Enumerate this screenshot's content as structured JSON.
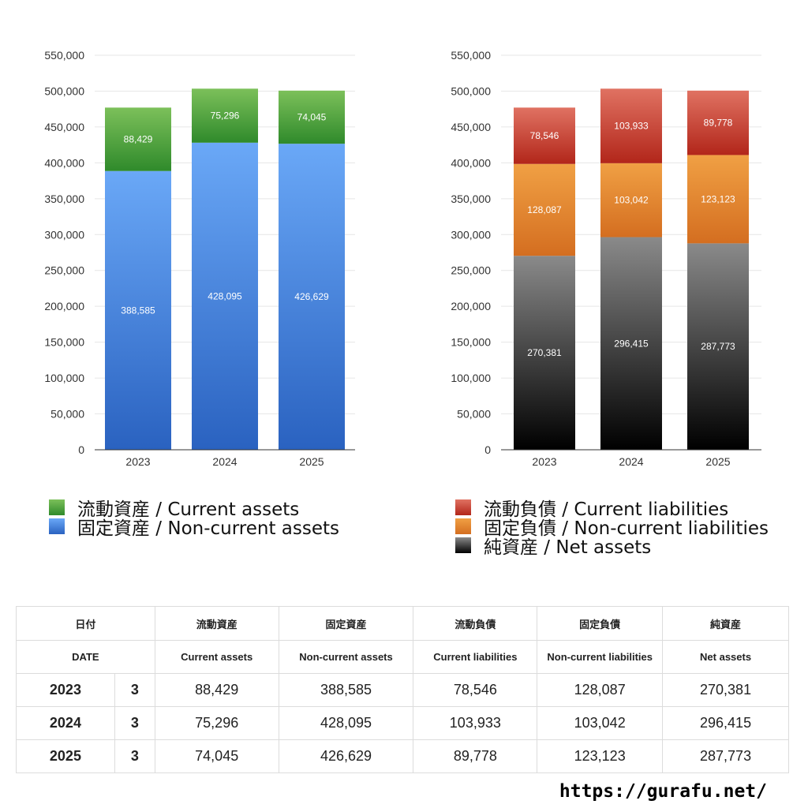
{
  "colors": {
    "current_assets": [
      "#7cc05a",
      "#2f8a2b"
    ],
    "noncurrent_assets": [
      "#6aa8f7",
      "#2a62c0"
    ],
    "current_liabilities": [
      "#e07262",
      "#b2261a"
    ],
    "noncurrent_liabilities": [
      "#f0a044",
      "#d46e20"
    ],
    "net_assets": [
      "#8a8a8a",
      "#000000"
    ]
  },
  "chart_data": [
    {
      "type": "bar",
      "stacked": true,
      "categories": [
        "2023",
        "2024",
        "2025"
      ],
      "ylim": [
        0,
        550000
      ],
      "yticks": [
        0,
        50000,
        100000,
        150000,
        200000,
        250000,
        300000,
        350000,
        400000,
        450000,
        500000,
        550000
      ],
      "ytick_labels": [
        "0",
        "50,000",
        "100,000",
        "150,000",
        "200,000",
        "250,000",
        "300,000",
        "350,000",
        "400,000",
        "450,000",
        "500,000",
        "550,000"
      ],
      "series": [
        {
          "name": "固定資産 / Non-current assets",
          "key": "noncurrent_assets",
          "values": [
            388585,
            428095,
            426629
          ],
          "labels": [
            "388,585",
            "428,095",
            "426,629"
          ]
        },
        {
          "name": "流動資産 / Current assets",
          "key": "current_assets",
          "values": [
            88429,
            75296,
            74045
          ],
          "labels": [
            "88,429",
            "75,296",
            "74,045"
          ]
        }
      ],
      "legend": [
        "流動資産 / Current assets",
        "固定資産 / Non-current assets"
      ],
      "legend_keys": [
        "current_assets",
        "noncurrent_assets"
      ],
      "legend_placement": "bottom"
    },
    {
      "type": "bar",
      "stacked": true,
      "categories": [
        "2023",
        "2024",
        "2025"
      ],
      "ylim": [
        0,
        550000
      ],
      "yticks": [
        0,
        50000,
        100000,
        150000,
        200000,
        250000,
        300000,
        350000,
        400000,
        450000,
        500000,
        550000
      ],
      "ytick_labels": [
        "0",
        "50,000",
        "100,000",
        "150,000",
        "200,000",
        "250,000",
        "300,000",
        "350,000",
        "400,000",
        "450,000",
        "500,000",
        "550,000"
      ],
      "series": [
        {
          "name": "純資産 / Net assets",
          "key": "net_assets",
          "values": [
            270381,
            296415,
            287773
          ],
          "labels": [
            "270,381",
            "296,415",
            "287,773"
          ]
        },
        {
          "name": "固定負債 / Non-current liabilities",
          "key": "noncurrent_liabilities",
          "values": [
            128087,
            103042,
            123123
          ],
          "labels": [
            "128,087",
            "103,042",
            "123,123"
          ]
        },
        {
          "name": "流動負債 / Current liabilities",
          "key": "current_liabilities",
          "values": [
            78546,
            103933,
            89778
          ],
          "labels": [
            "78,546",
            "103,933",
            "89,778"
          ]
        }
      ],
      "legend": [
        "流動負債 / Current liabilities",
        "固定負債 / Non-current liabilities",
        "純資産 / Net assets"
      ],
      "legend_keys": [
        "current_liabilities",
        "noncurrent_liabilities",
        "net_assets"
      ],
      "legend_placement": "bottom"
    }
  ],
  "table": {
    "header_jp": [
      "日付",
      "流動資産",
      "固定資産",
      "流動負債",
      "固定負債",
      "純資産"
    ],
    "header_en": [
      "DATE",
      "Current assets",
      "Non-current assets",
      "Current liabilities",
      "Non-current liabilities",
      "Net assets"
    ],
    "rows": [
      {
        "year": "2023",
        "month": "3",
        "values": [
          "88,429",
          "388,585",
          "78,546",
          "128,087",
          "270,381"
        ]
      },
      {
        "year": "2024",
        "month": "3",
        "values": [
          "75,296",
          "428,095",
          "103,933",
          "103,042",
          "296,415"
        ]
      },
      {
        "year": "2025",
        "month": "3",
        "values": [
          "74,045",
          "426,629",
          "89,778",
          "123,123",
          "287,773"
        ]
      }
    ]
  },
  "footer": {
    "url": "https://gurafu.net/"
  }
}
